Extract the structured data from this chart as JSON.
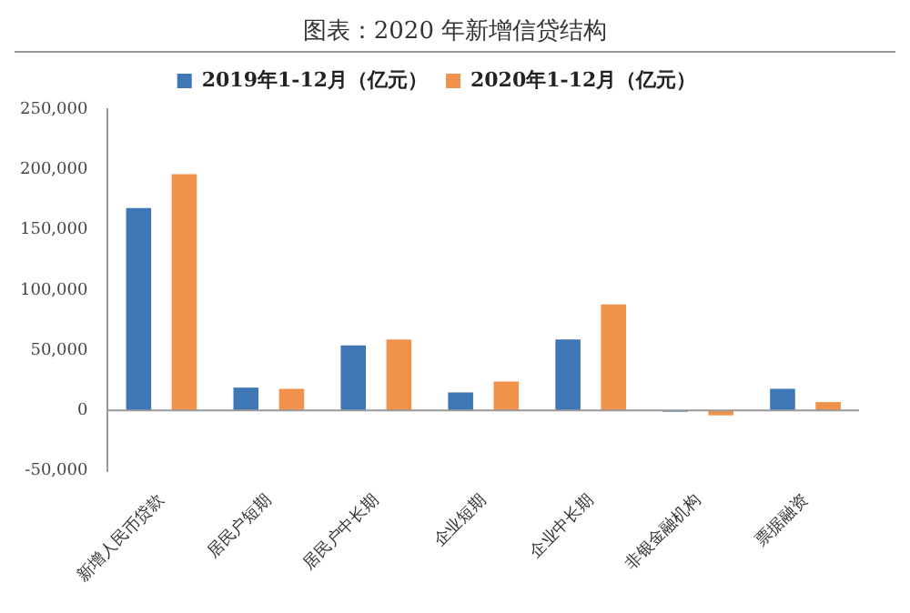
{
  "chart_data": {
    "type": "bar",
    "title": "图表：2020 年新增信贷结构",
    "categories": [
      "新增人民币贷款",
      "居民户短期",
      "居民户中长期",
      "企业短期",
      "企业中长期",
      "非银金融机构",
      "票据融资"
    ],
    "series": [
      {
        "name": "2019年1-12月（亿元）",
        "color": "#3f76b5",
        "values": [
          168000,
          19000,
          54000,
          15000,
          59000,
          -1000,
          18000
        ]
      },
      {
        "name": "2020年1-12月（亿元）",
        "color": "#f0924c",
        "values": [
          196000,
          18000,
          59000,
          24000,
          88000,
          -4000,
          7000
        ]
      }
    ],
    "ylim": [
      -50000,
      250000
    ],
    "yticks": [
      {
        "value": -50000,
        "label": "-50,000"
      },
      {
        "value": 0,
        "label": "0"
      },
      {
        "value": 50000,
        "label": "50,000"
      },
      {
        "value": 100000,
        "label": "100,000"
      },
      {
        "value": 150000,
        "label": "150,000"
      },
      {
        "value": 200000,
        "label": "200,000"
      },
      {
        "value": 250000,
        "label": "250,000"
      }
    ],
    "ref_lines": [
      {
        "axis": "y",
        "value": 0,
        "color": "#999999"
      }
    ],
    "grid": false,
    "legend": "top"
  }
}
